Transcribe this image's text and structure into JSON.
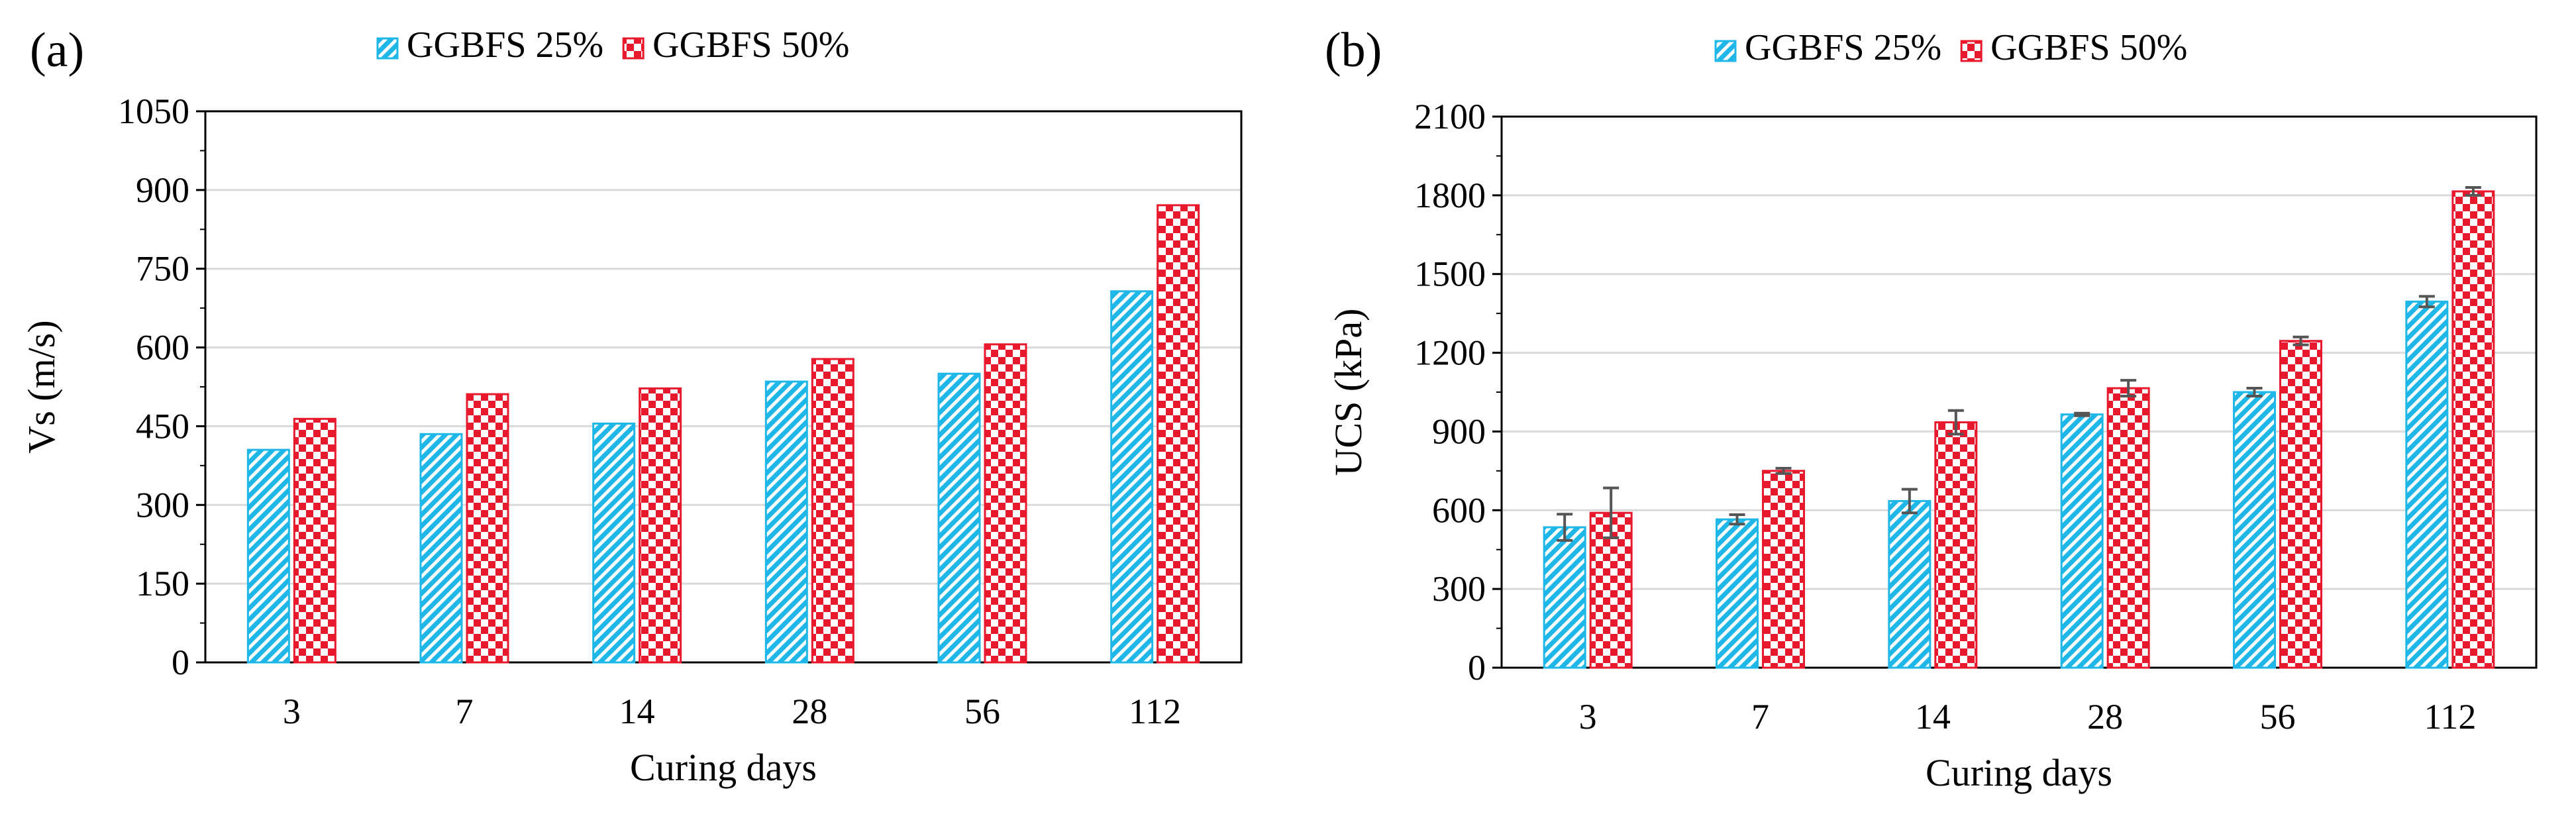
{
  "chart_data": [
    {
      "panel": "(a)",
      "type": "bar",
      "title": "",
      "categories": [
        "3",
        "7",
        "14",
        "28",
        "56",
        "112"
      ],
      "series": [
        {
          "name": "GGBFS 25%",
          "color": "#1fb6e8",
          "pattern": "diagonal-hatch",
          "values": [
            405,
            435,
            455,
            535,
            550,
            707
          ]
        },
        {
          "name": "GGBFS 50%",
          "color": "#e8192c",
          "pattern": "checker",
          "values": [
            464,
            511,
            522,
            578,
            606,
            871
          ]
        }
      ],
      "xlabel": "Curing days",
      "ylabel": "Vs (m/s)",
      "ylim": [
        0,
        1050
      ],
      "yticks": [
        "0",
        "150",
        "300",
        "450",
        "600",
        "750",
        "900",
        "1050"
      ],
      "grid": true,
      "legend": "top"
    },
    {
      "panel": "(b)",
      "type": "bar",
      "title": "",
      "categories": [
        "3",
        "7",
        "14",
        "28",
        "56",
        "112"
      ],
      "series": [
        {
          "name": "GGBFS 25%",
          "color": "#1fb6e8",
          "pattern": "diagonal-hatch",
          "values": [
            535,
            565,
            635,
            965,
            1050,
            1395
          ],
          "errors": [
            50,
            18,
            45,
            5,
            15,
            20
          ]
        },
        {
          "name": "GGBFS 50%",
          "color": "#e8192c",
          "pattern": "checker",
          "values": [
            590,
            750,
            935,
            1065,
            1245,
            1815
          ],
          "errors": [
            95,
            10,
            45,
            30,
            15,
            15
          ]
        }
      ],
      "xlabel": "Curing days",
      "ylabel": "UCS (kPa)",
      "ylim": [
        0,
        2100
      ],
      "yticks": [
        "0",
        "300",
        "600",
        "900",
        "1200",
        "1500",
        "1800",
        "2100"
      ],
      "grid": true,
      "legend": "top"
    }
  ]
}
